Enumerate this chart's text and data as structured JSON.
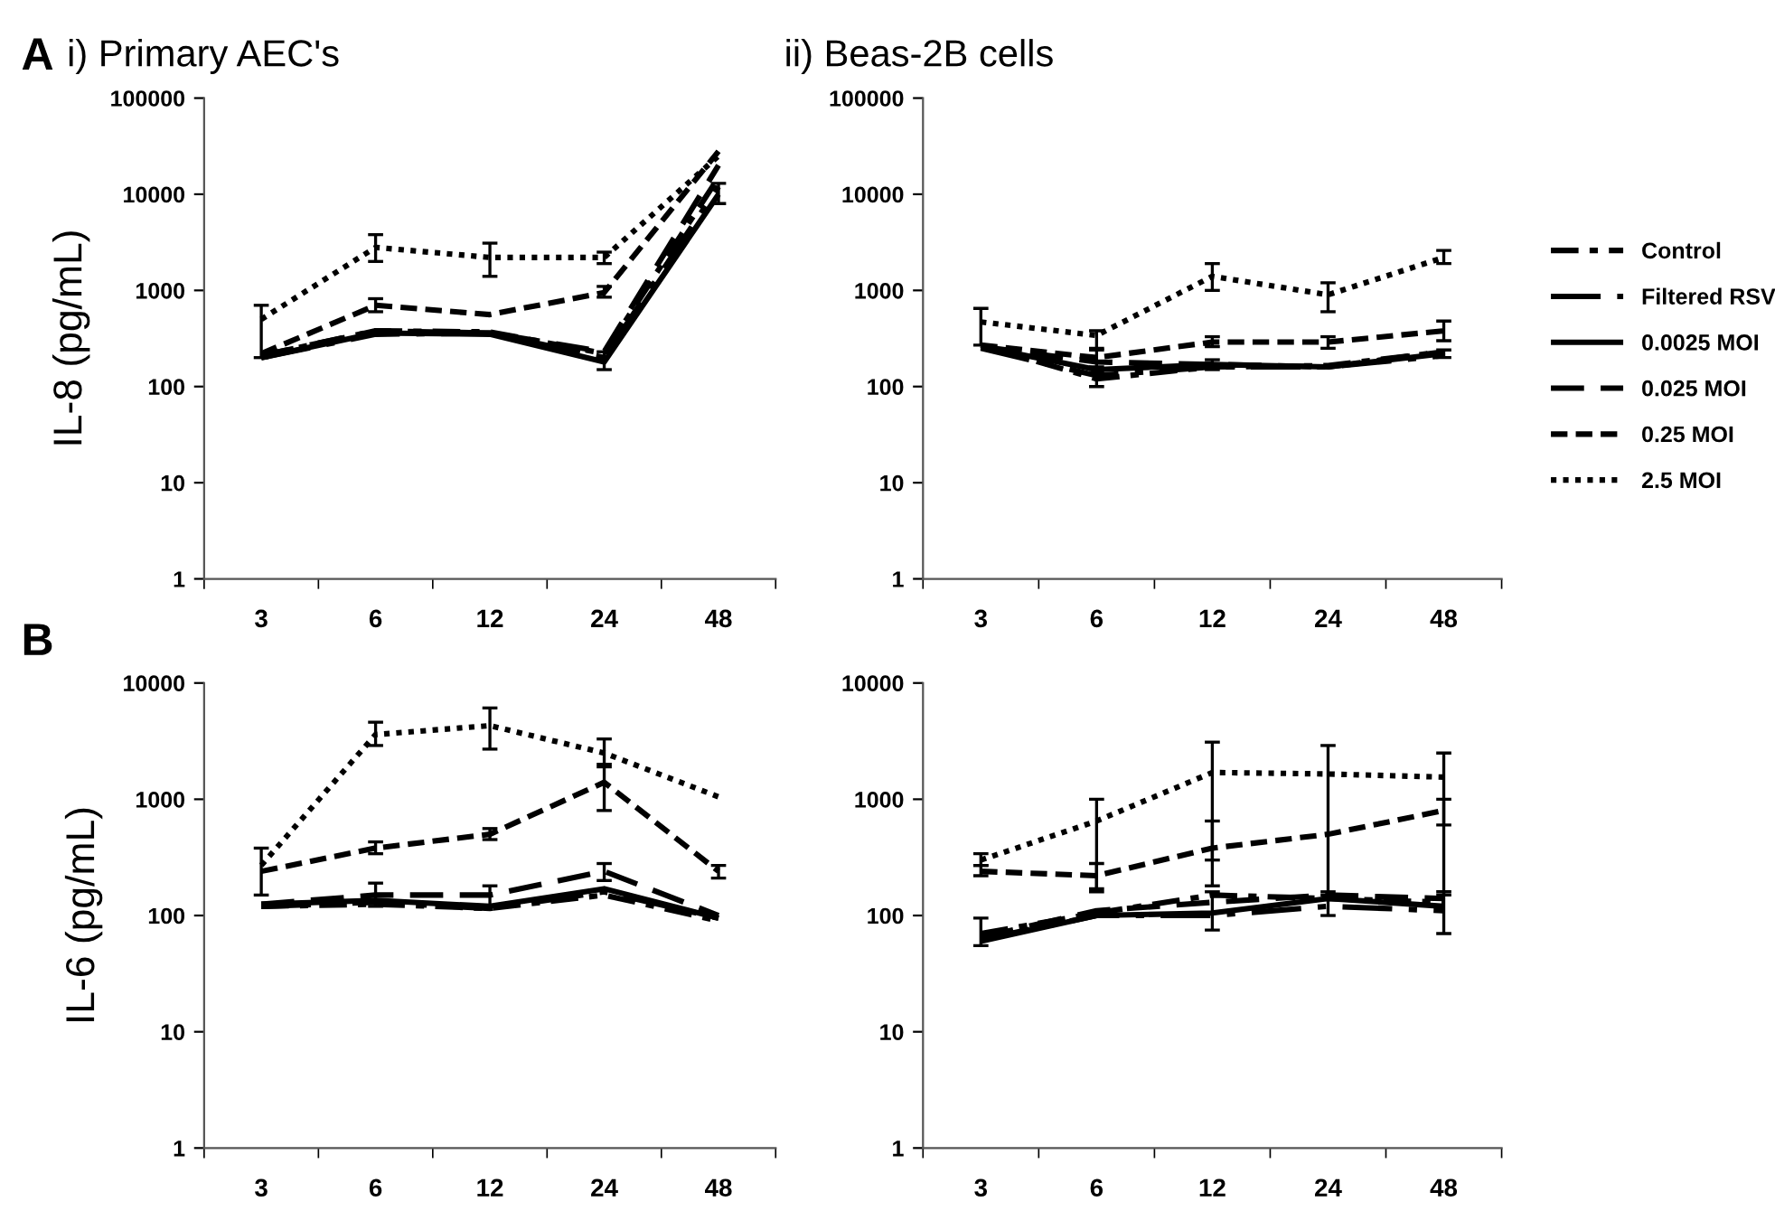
{
  "chart_data": [
    {
      "type": "line",
      "title": "i) Primary AEC's",
      "ylabel": "IL-8 (pg/mL)",
      "annotations": [
        "A"
      ],
      "categories": [
        "3",
        "6",
        "12",
        "24",
        "48"
      ],
      "log": true,
      "ylim": [
        1,
        100000
      ],
      "yticks": [
        1,
        10,
        100,
        1000,
        10000,
        100000
      ],
      "marker": "none",
      "legend": false,
      "series": [
        {
          "color": "#000000",
          "line_style": "dashdot",
          "values": [
            210,
            380,
            370,
            220,
            15000
          ]
        },
        {
          "color": "#000000",
          "line_style": "longdashdot",
          "values": [
            200,
            350,
            360,
            200,
            12000
          ]
        },
        {
          "color": "#000000",
          "line_style": "solid",
          "values": [
            200,
            360,
            350,
            180,
            10000
          ],
          "errors": [
            null,
            null,
            null,
            [
              150,
              230
            ],
            [
              8000,
              13000
            ]
          ]
        },
        {
          "color": "#000000",
          "line_style": "longdashed",
          "values": [
            210,
            380,
            360,
            230,
            20000
          ]
        },
        {
          "color": "#000000",
          "line_style": "dashed",
          "values": [
            220,
            700,
            560,
            950,
            28000
          ],
          "errors": [
            null,
            [
              600,
              820
            ],
            null,
            [
              850,
              1100
            ],
            null
          ]
        },
        {
          "color": "#000000",
          "line_style": "dotted",
          "values": [
            500,
            2800,
            2200,
            2200,
            25000
          ],
          "errors": [
            [
              200,
              700
            ],
            [
              2000,
              3800
            ],
            [
              1400,
              3100
            ],
            [
              1900,
              2500
            ],
            null
          ]
        }
      ]
    },
    {
      "type": "line",
      "title": "ii) Beas-2B cells",
      "categories": [
        "3",
        "6",
        "12",
        "24",
        "48"
      ],
      "log": true,
      "ylim": [
        1,
        100000
      ],
      "yticks": [
        1,
        10,
        100,
        1000,
        10000,
        100000
      ],
      "marker": "none",
      "legend": "right",
      "series": [
        {
          "name": "Control",
          "color": "#000000",
          "line_style": "dashdot",
          "values": [
            270,
            120,
            160,
            165,
            230
          ],
          "errors": [
            null,
            [
              100,
              140
            ],
            null,
            null,
            null
          ]
        },
        {
          "name": "Filtered RSV",
          "color": "#000000",
          "line_style": "longdashdot",
          "values": [
            250,
            130,
            160,
            160,
            210
          ]
        },
        {
          "name": "0.0025 MOI",
          "color": "#000000",
          "line_style": "solid",
          "values": [
            260,
            150,
            170,
            160,
            220
          ],
          "errors": [
            null,
            null,
            [
              150,
              190
            ],
            null,
            [
              200,
              240
            ]
          ]
        },
        {
          "name": "0.025 MOI",
          "color": "#000000",
          "line_style": "longdashed",
          "values": [
            260,
            180,
            170,
            160,
            230
          ]
        },
        {
          "name": "0.25 MOI",
          "color": "#000000",
          "line_style": "dashed",
          "values": [
            270,
            200,
            290,
            290,
            380
          ],
          "errors": [
            null,
            [
              160,
              240
            ],
            [
              260,
              330
            ],
            [
              250,
              330
            ],
            [
              300,
              480
            ]
          ]
        },
        {
          "name": "2.5 MOI",
          "color": "#000000",
          "line_style": "dotted",
          "values": [
            470,
            340,
            1400,
            900,
            2200
          ],
          "errors": [
            [
              270,
              650
            ],
            [
              250,
              380
            ],
            [
              1000,
              1900
            ],
            [
              600,
              1200
            ],
            [
              1900,
              2600
            ]
          ]
        }
      ]
    },
    {
      "type": "line",
      "ylabel": "IL-6 (pg/mL)",
      "annotations": [
        "B"
      ],
      "categories": [
        "3",
        "6",
        "12",
        "24",
        "48"
      ],
      "log": true,
      "ylim": [
        1,
        10000
      ],
      "yticks": [
        1,
        10,
        100,
        1000,
        10000
      ],
      "marker": "none",
      "legend": false,
      "series": [
        {
          "color": "#000000",
          "line_style": "dashdot",
          "values": [
            120,
            125,
            115,
            150,
            90
          ]
        },
        {
          "color": "#000000",
          "line_style": "longdashdot",
          "values": [
            120,
            130,
            115,
            160,
            95
          ]
        },
        {
          "color": "#000000",
          "line_style": "solid",
          "values": [
            125,
            135,
            120,
            170,
            95
          ]
        },
        {
          "color": "#000000",
          "line_style": "longdashed",
          "values": [
            125,
            150,
            150,
            240,
            100
          ],
          "errors": [
            null,
            [
              120,
              190
            ],
            [
              120,
              180
            ],
            [
              200,
              280
            ],
            null
          ]
        },
        {
          "color": "#000000",
          "line_style": "dashed",
          "values": [
            240,
            380,
            500,
            1400,
            240
          ],
          "errors": [
            null,
            [
              340,
              430
            ],
            [
              450,
              560
            ],
            [
              800,
              2000
            ],
            [
              210,
              270
            ]
          ]
        },
        {
          "color": "#000000",
          "line_style": "dotted",
          "values": [
            270,
            3600,
            4300,
            2500,
            1050
          ],
          "errors": [
            [
              150,
              380
            ],
            [
              2900,
              4600
            ],
            [
              2700,
              6100
            ],
            [
              1900,
              3300
            ],
            null
          ]
        }
      ]
    },
    {
      "type": "line",
      "categories": [
        "3",
        "6",
        "12",
        "24",
        "48"
      ],
      "log": true,
      "ylim": [
        1,
        10000
      ],
      "yticks": [
        1,
        10,
        100,
        1000,
        10000
      ],
      "marker": "none",
      "legend": false,
      "series": [
        {
          "color": "#000000",
          "line_style": "dashdot",
          "values": [
            70,
            105,
            150,
            140,
            130
          ]
        },
        {
          "color": "#000000",
          "line_style": "longdashdot",
          "values": [
            62,
            100,
            100,
            120,
            110
          ]
        },
        {
          "color": "#000000",
          "line_style": "solid",
          "values": [
            60,
            100,
            105,
            140,
            120
          ],
          "errors": [
            [
              55,
              95
            ],
            null,
            [
              75,
              160
            ],
            [
              100,
              160
            ],
            [
              70,
              160
            ]
          ]
        },
        {
          "color": "#000000",
          "line_style": "longdashed",
          "values": [
            65,
            110,
            130,
            150,
            140
          ]
        },
        {
          "color": "#000000",
          "line_style": "dashed",
          "values": [
            240,
            220,
            380,
            500,
            800
          ],
          "errors": [
            [
              220,
              270
            ],
            [
              160,
              280
            ],
            [
              300,
              650
            ],
            null,
            [
              600,
              1000
            ]
          ]
        },
        {
          "color": "#000000",
          "line_style": "dotted",
          "values": [
            300,
            650,
            1700,
            1650,
            1550
          ],
          "errors": [
            [
              270,
              340
            ],
            [
              170,
              1000
            ],
            [
              180,
              3100
            ],
            [
              150,
              2900
            ],
            [
              150,
              2500
            ]
          ]
        }
      ]
    }
  ]
}
